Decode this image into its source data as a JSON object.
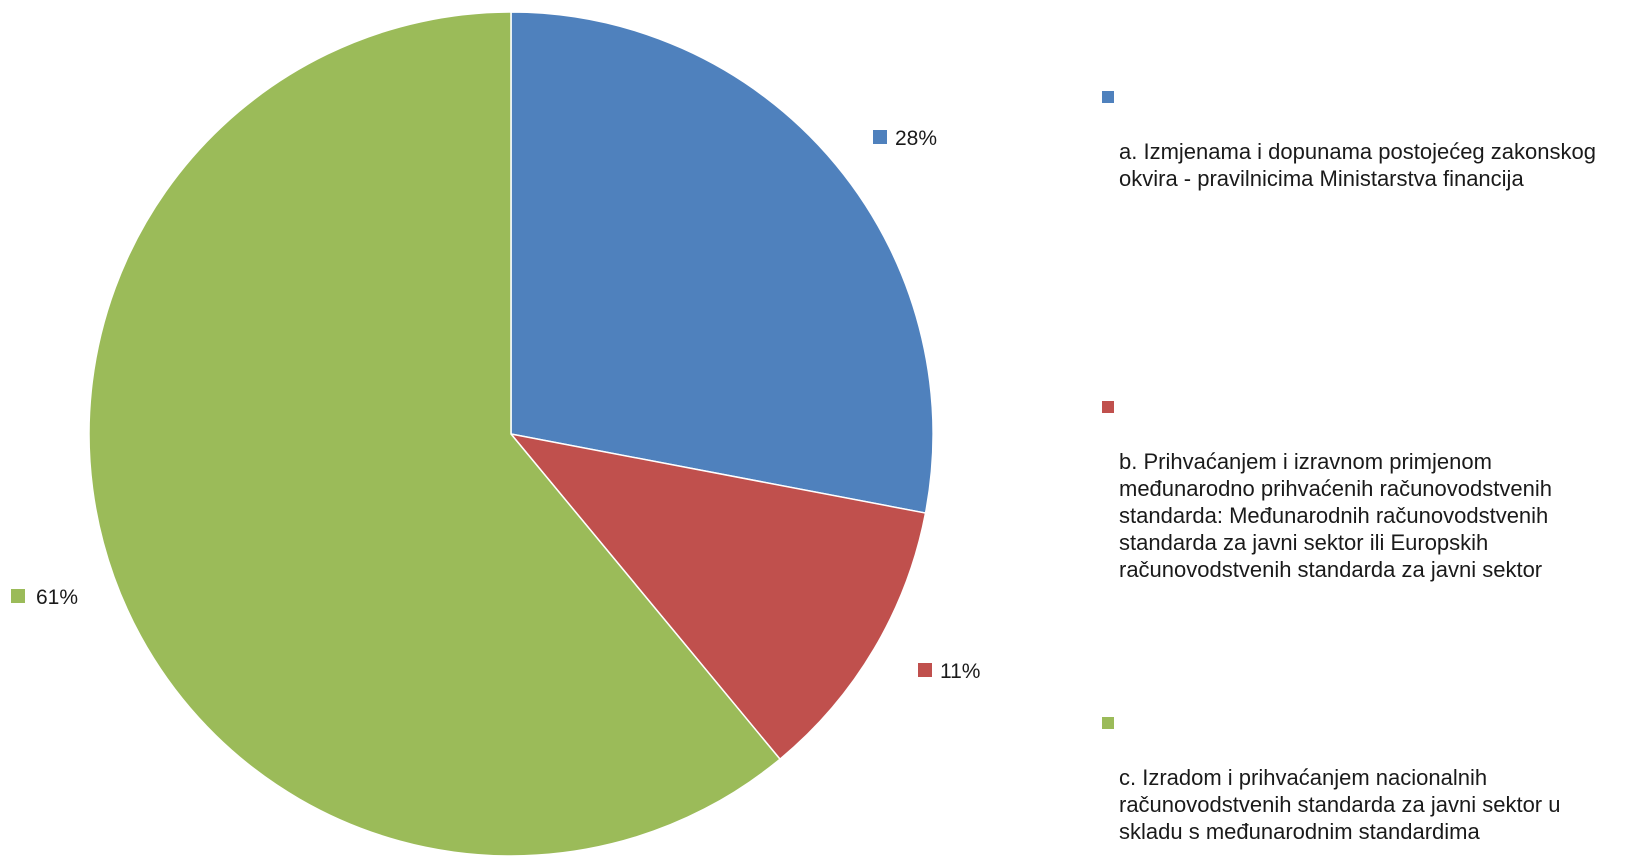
{
  "chart_data": {
    "type": "pie",
    "categories": [
      "a. Izmjenama i dopunama postojećeg zakonskog okvira - pravilnicima Ministarstva financija",
      "b. Prihvaćanjem i izravnom primjenom međunarodno prihvaćenih računovodstvenih standarda: Međunarodnih računovodstvenih standarda za javni sektor ili Europskih računovodstvenih standarda za javni sektor",
      "c. Izradom i prihvaćanjem nacionalnih računovodstvenih standarda za javni sektor u skladu s međunarodnim standardima"
    ],
    "values": [
      28,
      11,
      61
    ],
    "data_labels": [
      "28%",
      "11%",
      "61%"
    ],
    "colors": [
      "#4f81bd",
      "#c0504d",
      "#9bbb59"
    ],
    "legend_position": "right",
    "start_angle_deg": 0,
    "direction": "clockwise"
  },
  "legend": {
    "a": "a. Izmjenama i dopunama postojećeg zakonskog\nokvira  - pravilnicima Ministarstva financija",
    "b": "b. Prihvaćanjem i izravnom primjenom\nmeđunarodno prihvaćenih računovodstvenih\nstandarda: Međunarodnih računovodstvenih\nstandarda za javni sektor ili Europskih\nračunovodstvenih standarda za javni sektor",
    "c": "c. Izradom i prihvaćanjem nacionalnih\nračunovodstvenih standarda za javni sektor u\nskladu s međunarodnim standardima"
  }
}
